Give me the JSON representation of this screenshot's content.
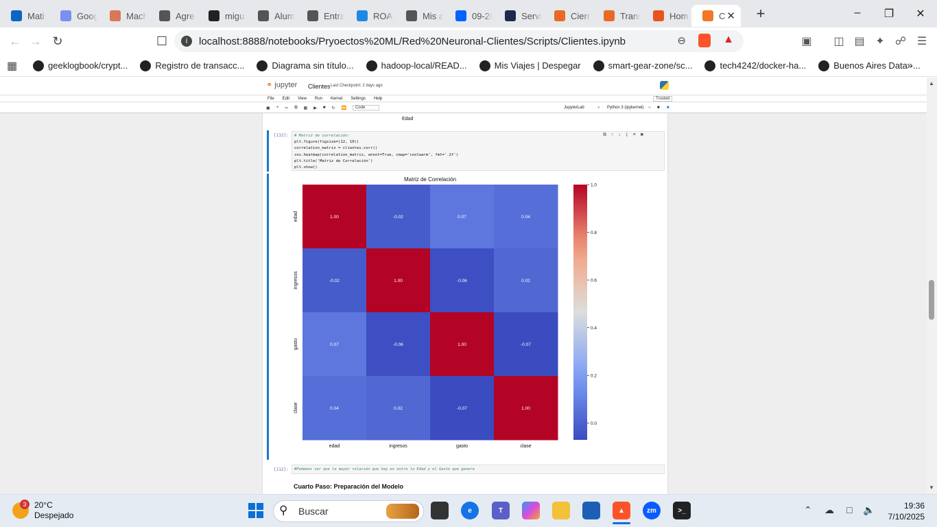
{
  "tabs": [
    {
      "label": "Mati",
      "icon": "linkedin-icon",
      "color": "#0a66c2"
    },
    {
      "label": "Goog",
      "icon": "gemini-icon",
      "color": "#7b8ff0"
    },
    {
      "label": "Mach",
      "icon": "claude-icon",
      "color": "#d97757"
    },
    {
      "label": "Agre",
      "icon": "openai-icon",
      "color": "#555555"
    },
    {
      "label": "migu",
      "icon": "github-icon",
      "color": "#222222"
    },
    {
      "label": "Alum",
      "icon": "azure-icon",
      "color": "#555555"
    },
    {
      "label": "Entra",
      "icon": "scroll-icon",
      "color": "#555555"
    },
    {
      "label": "ROAD",
      "icon": "cloud-icon",
      "color": "#1e88e5"
    },
    {
      "label": "Mis a",
      "icon": "azure-cloud-icon",
      "color": "#555555"
    },
    {
      "label": "09-2C",
      "icon": "dropbox-icon",
      "color": "#0061fe"
    },
    {
      "label": "Servi",
      "icon": "a-icon",
      "color": "#1a2a4e"
    },
    {
      "label": "Cierr",
      "icon": "jw-icon",
      "color": "#e86a26"
    },
    {
      "label": "Trans",
      "icon": "jw-icon",
      "color": "#e86a26"
    },
    {
      "label": "Hom",
      "icon": "loading-icon",
      "color": "#e8541e"
    },
    {
      "label": "C",
      "icon": "jupyter-icon",
      "color": "#f37726"
    }
  ],
  "address": {
    "url": "localhost:8888/notebooks/Pryoectos%20ML/Red%20Neuronal-Clientes/Scripts/Clientes.ipynb"
  },
  "bookmarks": [
    {
      "label": "geeklogbook/crypt..."
    },
    {
      "label": "Registro de transacc..."
    },
    {
      "label": "Diagrama sin título..."
    },
    {
      "label": "hadoop-local/READ..."
    },
    {
      "label": "Mis Viajes | Despegar"
    },
    {
      "label": "smart-gear-zone/sc..."
    },
    {
      "label": "tech4242/docker-ha..."
    },
    {
      "label": "Buenos Aires Data -..."
    }
  ],
  "jupyter": {
    "logo": "jupyter",
    "notebook_name": "Clientes",
    "checkpoint": "Last Checkpoint: 2 days ago",
    "menu": [
      "File",
      "Edit",
      "View",
      "Run",
      "Kernel",
      "Settings",
      "Help"
    ],
    "trusted": "Trusted",
    "cell_type": "Code",
    "jupyterlab_link": "JupyterLab",
    "kernel": "Python 3 (ipykernel)"
  },
  "notebook": {
    "prev_xlabel": "Edad",
    "cell_prompt": "[132]:",
    "code_lines": [
      "# Matriz de correlación:",
      "plt.figure(figsize=(12, 10))",
      "correlation_matrix = clientes.corr()",
      "sns.heatmap(correlation_matrix, annot=True, cmap='coolwarm', fmt='.2f')",
      "plt.title('Matriz de Correlación')",
      "plt.show()"
    ],
    "md_prompt": "[112]:",
    "md_text": "#Podemos ver que la mayor relación que hay es entre la Edad y el Gasto que genera",
    "heading": "Cuarto Paso: Preparación del Modelo"
  },
  "chart_data": {
    "type": "heatmap",
    "title": "Matriz de Correlación",
    "x": [
      "edad",
      "ingresos",
      "gasto",
      "clase"
    ],
    "y": [
      "edad",
      "ingresos",
      "gasto",
      "clase"
    ],
    "values": [
      [
        1.0,
        -0.02,
        0.07,
        0.04
      ],
      [
        -0.02,
        1.0,
        -0.06,
        0.02
      ],
      [
        0.07,
        -0.06,
        1.0,
        -0.07
      ],
      [
        0.04,
        0.02,
        -0.07,
        1.0
      ]
    ],
    "colorbar_ticks": [
      "1.0",
      "0.8",
      "0.6",
      "0.4",
      "0.2",
      "0.0"
    ],
    "colorbar_range": [
      -0.07,
      1.0
    ],
    "cmap": "coolwarm"
  },
  "taskbar": {
    "weather_temp": "20°C",
    "weather_desc": "Despejado",
    "weather_badge": "3",
    "search_placeholder": "Buscar",
    "time": "19:36",
    "date": "7/10/2025"
  }
}
